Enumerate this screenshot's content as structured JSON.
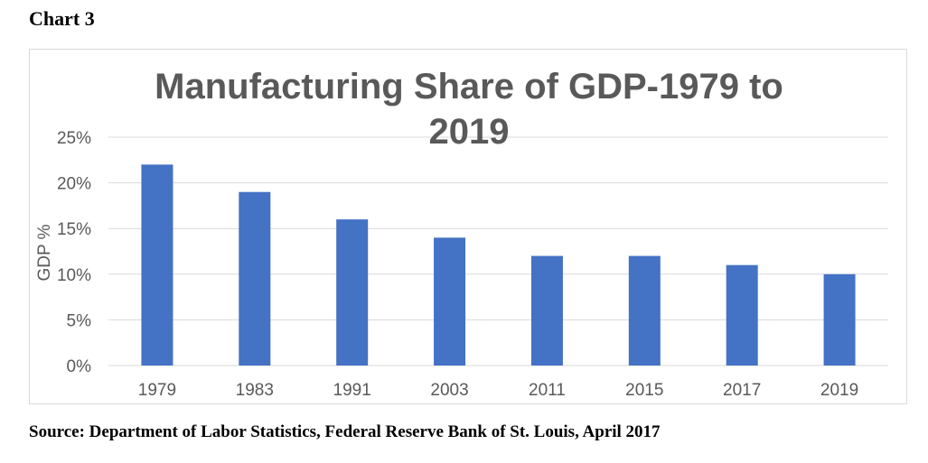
{
  "heading": "Chart 3",
  "source": "Source: Department of Labor Statistics, Federal Reserve Bank of St. Louis, April 2017",
  "chart_data": {
    "type": "bar",
    "title_line1": "Manufacturing Share of GDP-1979 to",
    "title_line2": "2019",
    "xlabel": "",
    "ylabel": "GDP %",
    "categories": [
      "1979",
      "1983",
      "1991",
      "2003",
      "2011",
      "2015",
      "2017",
      "2019"
    ],
    "values": [
      22,
      19,
      16,
      14,
      12,
      12,
      11,
      10
    ],
    "ylim": [
      0,
      25
    ],
    "yticks": [
      0,
      5,
      10,
      15,
      20,
      25
    ],
    "ytick_labels": [
      "0%",
      "5%",
      "10%",
      "15%",
      "20%",
      "25%"
    ],
    "grid": true,
    "legend": "none",
    "bar_color": "#4472c4",
    "grid_color": "#d9d9d9",
    "title_color": "#595959",
    "tick_color": "#595959"
  }
}
